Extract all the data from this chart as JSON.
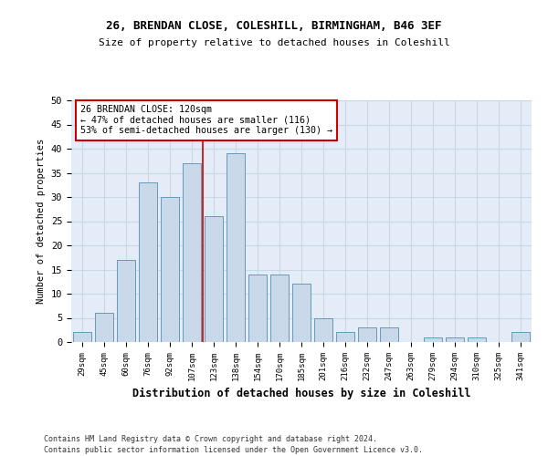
{
  "title_line1": "26, BRENDAN CLOSE, COLESHILL, BIRMINGHAM, B46 3EF",
  "title_line2": "Size of property relative to detached houses in Coleshill",
  "xlabel": "Distribution of detached houses by size in Coleshill",
  "ylabel": "Number of detached properties",
  "footer_line1": "Contains HM Land Registry data © Crown copyright and database right 2024.",
  "footer_line2": "Contains public sector information licensed under the Open Government Licence v3.0.",
  "categories": [
    "29sqm",
    "45sqm",
    "60sqm",
    "76sqm",
    "92sqm",
    "107sqm",
    "123sqm",
    "138sqm",
    "154sqm",
    "170sqm",
    "185sqm",
    "201sqm",
    "216sqm",
    "232sqm",
    "247sqm",
    "263sqm",
    "279sqm",
    "294sqm",
    "310sqm",
    "325sqm",
    "341sqm"
  ],
  "values": [
    2,
    6,
    17,
    33,
    30,
    37,
    26,
    39,
    14,
    14,
    12,
    5,
    2,
    3,
    3,
    0,
    1,
    1,
    1,
    0,
    2
  ],
  "bar_color": "#c9d9ea",
  "bar_edge_color": "#6699bb",
  "grid_color": "#ccd6e8",
  "background_color": "#e4ecf7",
  "vline_x_idx": 5.5,
  "vline_color": "#cc0000",
  "annotation_text": "26 BRENDAN CLOSE: 120sqm\n← 47% of detached houses are smaller (116)\n53% of semi-detached houses are larger (130) →",
  "annotation_box_facecolor": "#ffffff",
  "annotation_box_edgecolor": "#cc0000",
  "ylim": [
    0,
    50
  ],
  "yticks": [
    0,
    5,
    10,
    15,
    20,
    25,
    30,
    35,
    40,
    45,
    50
  ]
}
